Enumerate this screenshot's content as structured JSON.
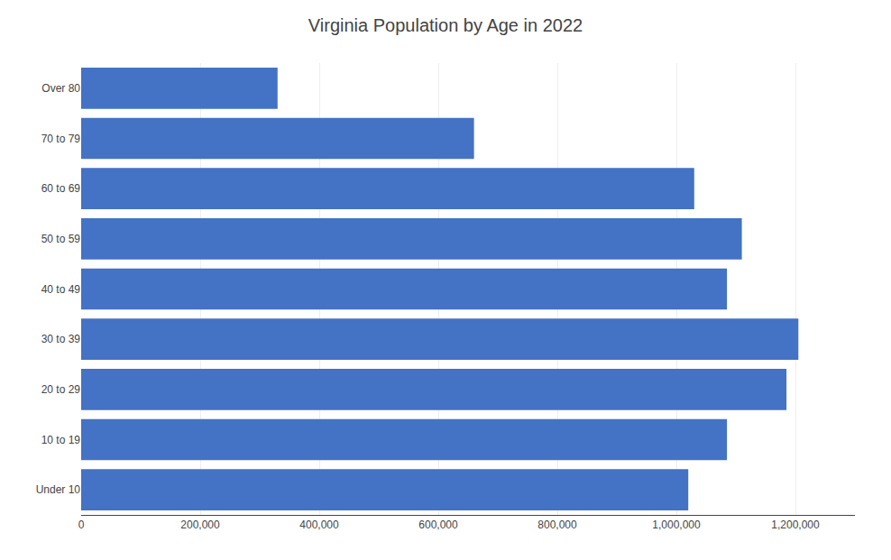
{
  "chart_data": {
    "type": "bar",
    "orientation": "horizontal",
    "title": "Virginia Population by Age in 2022",
    "categories": [
      "Under 10",
      "10 to 19",
      "20 to 29",
      "30 to 39",
      "40 to 49",
      "50 to 59",
      "60 to 69",
      "70 to 79",
      "Over 80"
    ],
    "values": [
      1020000,
      1085000,
      1185000,
      1205000,
      1085000,
      1110000,
      1030000,
      660000,
      330000
    ],
    "color": "#4472C4",
    "xlim": [
      0,
      1300000
    ],
    "xticks": [
      0,
      {
        "value": 200000,
        "label": "200,000"
      },
      {
        "value": 400000,
        "label": "400,000"
      },
      {
        "value": 600000,
        "label": "600,000"
      },
      {
        "value": 800000,
        "label": "800,000"
      },
      {
        "value": 1000000,
        "label": "1,000,000"
      },
      {
        "value": 1200000,
        "label": "1,200,000"
      }
    ],
    "grid": true
  }
}
